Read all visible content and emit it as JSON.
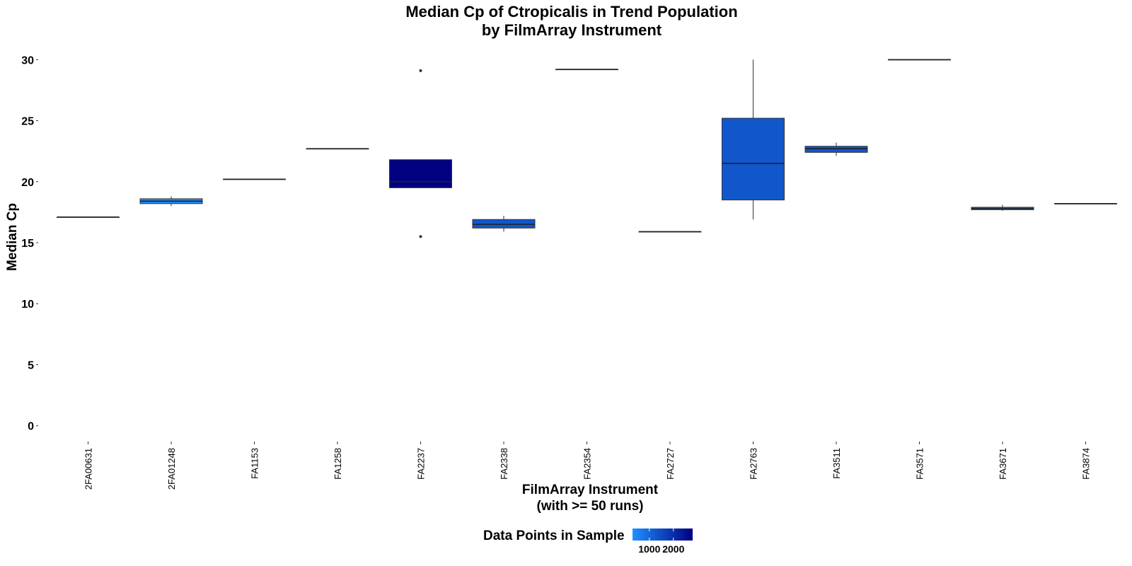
{
  "chart_data": {
    "type": "boxplot",
    "title_line1": "Median Cp of Ctropicalis in Trend Population",
    "title_line2": "by FilmArray Instrument",
    "xlabel_line1": "FilmArray Instrument",
    "xlabel_line2": "(with >= 50 runs)",
    "ylabel": "Median Cp",
    "ylim": [
      -1,
      31
    ],
    "yticks": [
      0,
      5,
      10,
      15,
      20,
      25,
      30
    ],
    "grid": false,
    "legend": {
      "title": "Data Points in Sample",
      "position": "bottom",
      "ticks": [
        1000,
        2000
      ],
      "range": [
        300,
        2800
      ],
      "color_low": "#1E90FF",
      "color_high": "#000080"
    },
    "categories": [
      "2FA00631",
      "2FA01248",
      "FA1153",
      "FA1258",
      "FA2237",
      "FA2338",
      "FA2354",
      "FA2727",
      "FA2763",
      "FA3511",
      "FA3571",
      "FA3671",
      "FA3874"
    ],
    "boxes": [
      {
        "q1": 17.1,
        "median": 17.1,
        "q3": 17.1,
        "whisker_low": 17.1,
        "whisker_high": 17.1,
        "outliers": [],
        "n": 500
      },
      {
        "q1": 18.2,
        "median": 18.4,
        "q3": 18.6,
        "whisker_low": 18.0,
        "whisker_high": 18.8,
        "outliers": [],
        "n": 350
      },
      {
        "q1": 20.2,
        "median": 20.2,
        "q3": 20.2,
        "whisker_low": 20.2,
        "whisker_high": 20.2,
        "outliers": [],
        "n": 800
      },
      {
        "q1": 22.7,
        "median": 22.7,
        "q3": 22.7,
        "whisker_low": 22.7,
        "whisker_high": 22.7,
        "outliers": [],
        "n": 800
      },
      {
        "q1": 19.5,
        "median": 20.0,
        "q3": 21.8,
        "whisker_low": 19.5,
        "whisker_high": 21.8,
        "outliers": [
          29.1,
          15.5
        ],
        "n": 2800
      },
      {
        "q1": 16.2,
        "median": 16.5,
        "q3": 16.9,
        "whisker_low": 15.9,
        "whisker_high": 17.2,
        "outliers": [],
        "n": 1300
      },
      {
        "q1": 29.2,
        "median": 29.2,
        "q3": 29.2,
        "whisker_low": 29.2,
        "whisker_high": 29.2,
        "outliers": [],
        "n": 800
      },
      {
        "q1": 15.9,
        "median": 15.9,
        "q3": 15.9,
        "whisker_low": 15.9,
        "whisker_high": 15.9,
        "outliers": [],
        "n": 800
      },
      {
        "q1": 18.5,
        "median": 21.5,
        "q3": 25.2,
        "whisker_low": 16.9,
        "whisker_high": 30.0,
        "outliers": [],
        "n": 1300
      },
      {
        "q1": 22.4,
        "median": 22.7,
        "q3": 22.9,
        "whisker_low": 22.1,
        "whisker_high": 23.2,
        "outliers": [],
        "n": 1300
      },
      {
        "q1": 30.0,
        "median": 30.0,
        "q3": 30.0,
        "whisker_low": 30.0,
        "whisker_high": 30.0,
        "outliers": [],
        "n": 800
      },
      {
        "q1": 17.7,
        "median": 17.8,
        "q3": 17.9,
        "whisker_low": 17.6,
        "whisker_high": 18.1,
        "outliers": [],
        "n": 1000
      },
      {
        "q1": 18.2,
        "median": 18.2,
        "q3": 18.2,
        "whisker_low": 18.2,
        "whisker_high": 18.2,
        "outliers": [],
        "n": 800
      }
    ]
  }
}
